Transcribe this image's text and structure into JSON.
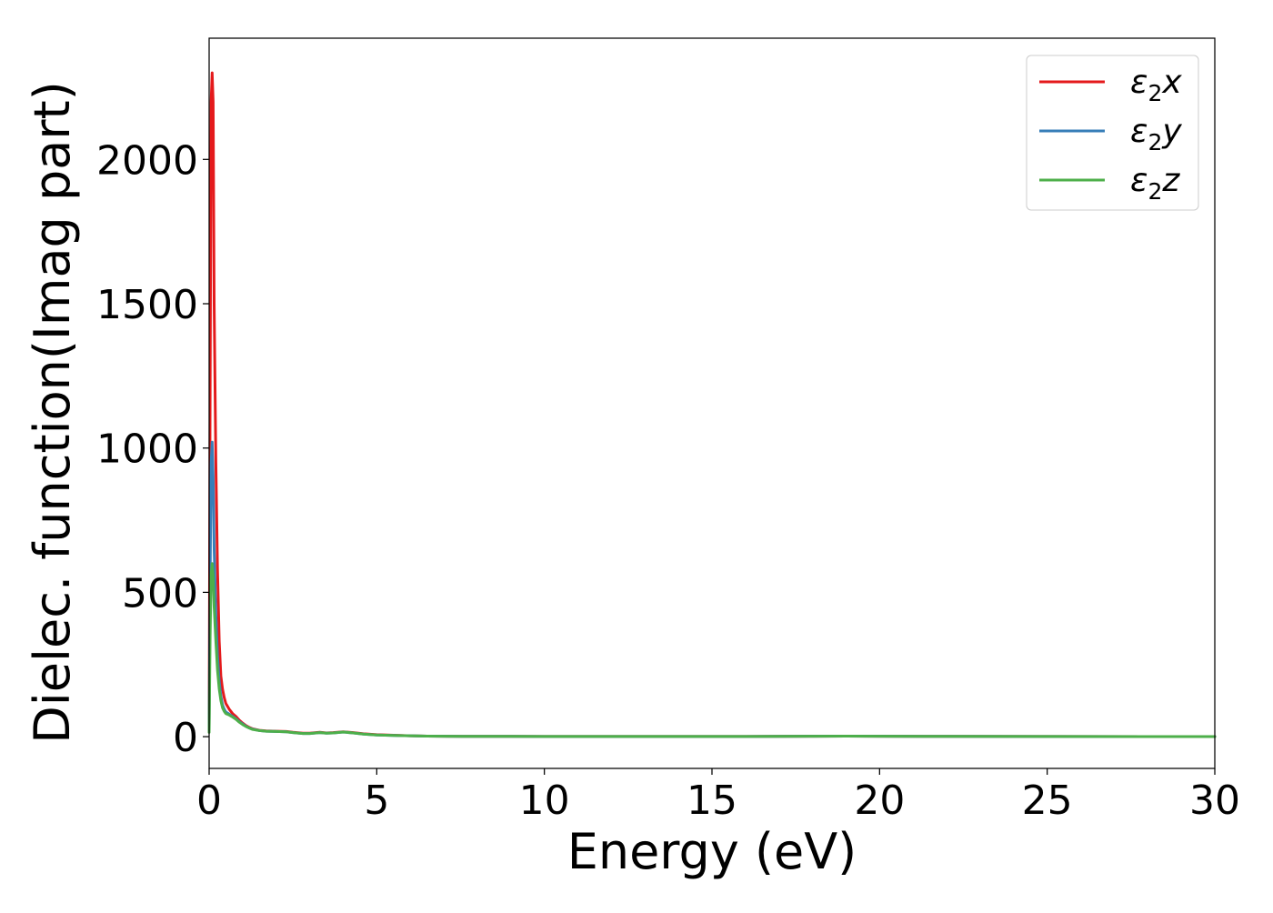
{
  "chart_data": {
    "type": "line",
    "title": "",
    "xlabel": "Energy (eV)",
    "ylabel": "Dielec. function(Imag part)",
    "xlim": [
      0,
      30
    ],
    "ylim": [
      -110,
      2420
    ],
    "xticks": [
      0,
      5,
      10,
      15,
      20,
      25,
      30
    ],
    "xtick_labels": [
      "0",
      "5",
      "10",
      "15",
      "20",
      "25",
      "30"
    ],
    "yticks": [
      0,
      500,
      1000,
      1500,
      2000
    ],
    "ytick_labels": [
      "0",
      "500",
      "1000",
      "1500",
      "2000"
    ],
    "grid": false,
    "legend_position": "top-right",
    "series": [
      {
        "name": "ε₂x",
        "legend": {
          "base": "ε",
          "sub": "2",
          "axis": "x"
        },
        "color": "#e41a1c",
        "x": [
          0,
          0.03,
          0.06,
          0.09,
          0.12,
          0.15,
          0.2,
          0.25,
          0.3,
          0.35,
          0.4,
          0.45,
          0.5,
          0.6,
          0.7,
          0.8,
          0.9,
          1.0,
          1.1,
          1.2,
          1.3,
          1.5,
          1.7,
          2.0,
          2.3,
          2.5,
          2.8,
          3.0,
          3.3,
          3.5,
          3.7,
          4.0,
          4.3,
          4.6,
          5.0,
          5.5,
          6.0,
          6.5,
          7.0,
          8.0,
          9.0,
          10.0,
          12.0,
          14.0,
          16.0,
          18.0,
          19.0,
          20.0,
          22.0,
          25.0,
          28.0,
          30.0
        ],
        "y": [
          30,
          1200,
          2200,
          2300,
          2200,
          1500,
          950,
          580,
          330,
          210,
          165,
          135,
          115,
          95,
          80,
          70,
          57,
          47,
          38,
          32,
          27,
          22,
          20,
          19,
          18,
          15,
          12,
          12,
          15,
          13,
          14,
          17,
          14,
          10,
          7,
          5,
          3,
          2,
          1.5,
          1,
          0.8,
          0.6,
          0.5,
          0.5,
          0.6,
          1.5,
          2,
          1.5,
          1,
          0.6,
          0.4,
          0.3
        ]
      },
      {
        "name": "ε₂y",
        "legend": {
          "base": "ε",
          "sub": "2",
          "axis": "y"
        },
        "color": "#377eb8",
        "x": [
          0,
          0.03,
          0.06,
          0.09,
          0.12,
          0.15,
          0.2,
          0.25,
          0.3,
          0.35,
          0.4,
          0.45,
          0.5,
          0.6,
          0.7,
          0.8,
          0.9,
          1.0,
          1.1,
          1.2,
          1.3,
          1.5,
          1.7,
          2.0,
          2.3,
          2.5,
          2.8,
          3.0,
          3.3,
          3.5,
          3.7,
          4.0,
          4.3,
          4.6,
          5.0,
          5.5,
          6.0,
          6.5,
          7.0,
          8.0,
          9.0,
          10.0,
          12.0,
          14.0,
          16.0,
          18.0,
          19.0,
          20.0,
          22.0,
          25.0,
          28.0,
          30.0
        ],
        "y": [
          20,
          550,
          950,
          1020,
          900,
          650,
          420,
          280,
          190,
          140,
          110,
          95,
          85,
          78,
          70,
          62,
          52,
          44,
          36,
          30,
          26,
          21,
          19,
          18,
          17,
          14,
          11,
          11,
          14,
          12,
          13,
          16,
          13,
          9,
          6,
          4,
          3,
          2,
          1.5,
          1,
          0.8,
          0.6,
          0.5,
          0.5,
          0.6,
          1.5,
          2,
          1.5,
          1,
          0.6,
          0.4,
          0.3
        ]
      },
      {
        "name": "ε₂z",
        "legend": {
          "base": "ε",
          "sub": "2",
          "axis": "z"
        },
        "color": "#4daf4a",
        "x": [
          0,
          0.03,
          0.06,
          0.09,
          0.12,
          0.15,
          0.2,
          0.25,
          0.3,
          0.35,
          0.4,
          0.45,
          0.5,
          0.6,
          0.7,
          0.8,
          0.9,
          1.0,
          1.1,
          1.2,
          1.3,
          1.5,
          1.7,
          2.0,
          2.3,
          2.5,
          2.8,
          3.0,
          3.3,
          3.5,
          3.7,
          4.0,
          4.3,
          4.6,
          5.0,
          5.5,
          6.0,
          6.5,
          7.0,
          8.0,
          9.0,
          10.0,
          12.0,
          14.0,
          16.0,
          18.0,
          19.0,
          20.0,
          22.0,
          25.0,
          28.0,
          30.0
        ],
        "y": [
          15,
          350,
          560,
          600,
          560,
          450,
          330,
          230,
          165,
          125,
          100,
          88,
          80,
          75,
          68,
          60,
          50,
          42,
          35,
          30,
          25,
          21,
          19,
          18,
          17,
          14,
          11,
          11,
          14,
          12,
          13,
          16,
          13,
          9,
          6,
          4,
          3,
          2,
          1.5,
          1,
          0.8,
          0.6,
          0.5,
          0.5,
          0.6,
          1.5,
          2,
          1.5,
          1,
          0.6,
          0.4,
          0.3
        ]
      }
    ]
  }
}
